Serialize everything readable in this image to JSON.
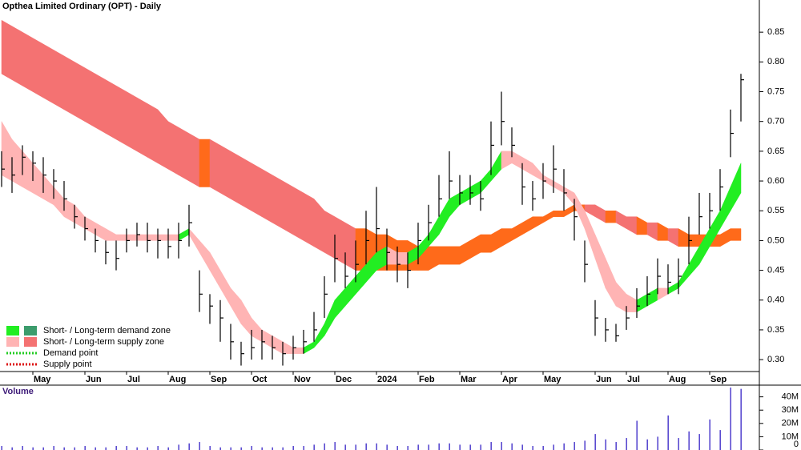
{
  "chart_data": [
    {
      "type": "ohlc",
      "title": "Opthea Limited Ordinary (OPT) - Daily",
      "categories": [
        null,
        null,
        null,
        "May",
        null,
        null,
        null,
        null,
        "Jun",
        null,
        null,
        null,
        "Jul",
        null,
        null,
        null,
        "Aug",
        null,
        null,
        null,
        "Sep",
        null,
        null,
        null,
        "Oct",
        null,
        null,
        null,
        "Nov",
        null,
        null,
        null,
        "Dec",
        null,
        null,
        null,
        "2024",
        null,
        null,
        null,
        "Feb",
        null,
        null,
        null,
        "Mar",
        null,
        null,
        null,
        "Apr",
        null,
        null,
        null,
        "May",
        null,
        null,
        null,
        null,
        "Jun",
        null,
        null,
        "Jul",
        null,
        null,
        null,
        "Aug",
        null,
        null,
        null,
        "Sep",
        null,
        null,
        null
      ],
      "high": [
        0.65,
        0.64,
        0.66,
        0.65,
        0.64,
        0.62,
        0.6,
        0.56,
        0.54,
        0.52,
        0.5,
        0.5,
        0.52,
        0.53,
        0.53,
        0.52,
        0.52,
        0.53,
        0.56,
        0.45,
        0.41,
        0.4,
        0.36,
        0.33,
        0.35,
        0.35,
        0.34,
        0.33,
        0.34,
        0.35,
        0.38,
        0.44,
        0.51,
        0.48,
        0.5,
        0.55,
        0.59,
        0.52,
        0.49,
        0.48,
        0.53,
        0.56,
        0.61,
        0.65,
        0.61,
        0.61,
        0.6,
        0.7,
        0.75,
        0.69,
        0.63,
        0.6,
        0.63,
        0.66,
        0.62,
        0.57,
        0.5,
        0.4,
        0.37,
        0.36,
        0.39,
        0.42,
        0.44,
        0.47,
        0.46,
        0.47,
        0.54,
        0.58,
        0.58,
        0.62,
        0.72,
        0.78
      ],
      "low": [
        0.59,
        0.58,
        0.61,
        0.6,
        0.58,
        0.57,
        0.55,
        0.52,
        0.5,
        0.48,
        0.46,
        0.45,
        0.48,
        0.49,
        0.48,
        0.47,
        0.47,
        0.47,
        0.49,
        0.38,
        0.36,
        0.33,
        0.3,
        0.29,
        0.3,
        0.3,
        0.3,
        0.29,
        0.3,
        0.31,
        0.33,
        0.37,
        0.43,
        0.42,
        0.43,
        0.46,
        0.48,
        0.45,
        0.43,
        0.42,
        0.46,
        0.5,
        0.54,
        0.57,
        0.56,
        0.56,
        0.55,
        0.61,
        0.66,
        0.64,
        0.56,
        0.55,
        0.57,
        0.58,
        0.55,
        0.5,
        0.43,
        0.34,
        0.33,
        0.33,
        0.35,
        0.37,
        0.39,
        0.41,
        0.41,
        0.41,
        0.46,
        0.51,
        0.52,
        0.55,
        0.64,
        0.7
      ],
      "close": [
        0.62,
        0.61,
        0.64,
        0.63,
        0.61,
        0.6,
        0.57,
        0.54,
        0.52,
        0.5,
        0.48,
        0.47,
        0.5,
        0.51,
        0.5,
        0.5,
        0.49,
        0.5,
        0.53,
        0.41,
        0.39,
        0.37,
        0.33,
        0.31,
        0.32,
        0.33,
        0.32,
        0.31,
        0.32,
        0.33,
        0.35,
        0.41,
        0.47,
        0.44,
        0.46,
        0.5,
        0.52,
        0.48,
        0.46,
        0.45,
        0.5,
        0.53,
        0.57,
        0.6,
        0.58,
        0.58,
        0.57,
        0.66,
        0.7,
        0.66,
        0.59,
        0.57,
        0.6,
        0.62,
        0.58,
        0.54,
        0.46,
        0.37,
        0.35,
        0.34,
        0.37,
        0.39,
        0.41,
        0.44,
        0.43,
        0.44,
        0.5,
        0.54,
        0.55,
        0.59,
        0.68,
        0.77
      ],
      "bands": [
        {
          "lower": [
            0.78,
            0.77,
            0.76,
            0.75,
            0.74,
            0.73,
            0.72,
            0.71,
            0.7,
            0.69,
            0.68,
            0.67,
            0.66,
            0.65,
            0.64,
            0.63,
            0.62,
            0.61,
            0.6,
            0.59,
            0.59,
            0.58,
            0.57,
            0.56,
            0.55,
            0.54,
            0.53,
            0.52,
            0.51,
            0.5,
            0.49,
            0.48,
            0.47,
            0.46,
            0.45,
            0.45,
            0.45,
            0.45,
            0.45,
            0.45,
            0.45,
            0.45,
            0.46,
            0.46,
            0.46,
            0.47,
            0.48,
            0.48,
            0.49,
            0.5,
            0.51,
            0.52,
            0.53,
            0.54,
            0.54,
            0.55,
            0.55,
            0.54,
            0.53,
            0.53,
            0.52,
            0.51,
            0.51,
            0.5,
            0.5,
            0.49,
            0.49,
            0.49,
            0.49,
            0.49,
            0.5,
            0.5
          ],
          "upper": [
            0.87,
            0.86,
            0.85,
            0.84,
            0.83,
            0.82,
            0.81,
            0.8,
            0.79,
            0.78,
            0.77,
            0.76,
            0.75,
            0.74,
            0.73,
            0.72,
            0.7,
            0.69,
            0.68,
            0.67,
            0.67,
            0.66,
            0.65,
            0.64,
            0.63,
            0.62,
            0.61,
            0.6,
            0.59,
            0.58,
            0.57,
            0.55,
            0.54,
            0.53,
            0.52,
            0.52,
            0.51,
            0.51,
            0.5,
            0.5,
            0.49,
            0.49,
            0.49,
            0.49,
            0.49,
            0.5,
            0.51,
            0.51,
            0.52,
            0.52,
            0.53,
            0.54,
            0.54,
            0.55,
            0.55,
            0.56,
            0.56,
            0.56,
            0.55,
            0.55,
            0.54,
            0.54,
            0.53,
            0.53,
            0.52,
            0.52,
            0.51,
            0.51,
            0.51,
            0.51,
            0.52,
            0.52
          ],
          "color": "#f47272",
          "demand_color": "#ff6a1a"
        },
        {
          "lower": [
            0.61,
            0.6,
            0.59,
            0.58,
            0.57,
            0.56,
            0.54,
            0.53,
            0.52,
            0.51,
            0.5,
            0.5,
            0.5,
            0.5,
            0.5,
            0.5,
            0.5,
            0.5,
            0.51,
            0.48,
            0.45,
            0.42,
            0.39,
            0.36,
            0.34,
            0.33,
            0.32,
            0.31,
            0.31,
            0.31,
            0.32,
            0.34,
            0.37,
            0.39,
            0.41,
            0.43,
            0.45,
            0.46,
            0.46,
            0.46,
            0.47,
            0.49,
            0.51,
            0.54,
            0.56,
            0.57,
            0.58,
            0.6,
            0.62,
            0.63,
            0.62,
            0.61,
            0.6,
            0.59,
            0.58,
            0.56,
            0.52,
            0.47,
            0.42,
            0.39,
            0.38,
            0.38,
            0.39,
            0.4,
            0.41,
            0.42,
            0.44,
            0.46,
            0.49,
            0.52,
            0.55,
            0.58
          ],
          "upper": [
            0.7,
            0.67,
            0.65,
            0.63,
            0.61,
            0.59,
            0.57,
            0.56,
            0.54,
            0.53,
            0.52,
            0.51,
            0.51,
            0.51,
            0.51,
            0.51,
            0.51,
            0.51,
            0.52,
            0.5,
            0.48,
            0.45,
            0.42,
            0.4,
            0.37,
            0.35,
            0.34,
            0.33,
            0.32,
            0.32,
            0.33,
            0.36,
            0.4,
            0.42,
            0.44,
            0.46,
            0.48,
            0.49,
            0.48,
            0.48,
            0.49,
            0.51,
            0.54,
            0.57,
            0.58,
            0.59,
            0.6,
            0.62,
            0.65,
            0.65,
            0.64,
            0.63,
            0.61,
            0.6,
            0.59,
            0.58,
            0.55,
            0.51,
            0.47,
            0.43,
            0.41,
            0.4,
            0.41,
            0.42,
            0.42,
            0.43,
            0.46,
            0.49,
            0.52,
            0.55,
            0.59,
            0.63
          ],
          "color": "#ffb4b4",
          "demand_color": "#22ee22"
        }
      ],
      "ylim": [
        0.28,
        0.904
      ],
      "yticks": [
        {
          "value": 0.3,
          "label": "0.30"
        },
        0.35,
        {
          "value": 0.4,
          "label": "0.40"
        },
        0.45,
        {
          "value": 0.5,
          "label": "0.50"
        },
        0.55,
        {
          "value": 0.6,
          "label": "0.60"
        },
        0.65,
        {
          "value": 0.7,
          "label": "0.70"
        },
        0.75,
        {
          "value": 0.8,
          "label": "0.80"
        },
        0.85
      ],
      "legend": [
        {
          "label": "Short- / Long-term demand zone",
          "colors": [
            "#22ee22",
            "#3c9c6c"
          ]
        },
        {
          "label": "Short- / Long-term supply zone",
          "colors": [
            "#ffb4b4",
            "#f47272"
          ]
        },
        {
          "label": "Demand point",
          "color": "#22cc22"
        },
        {
          "label": "Supply point",
          "color": "#dd1111"
        }
      ]
    },
    {
      "type": "bar",
      "title": "Volume",
      "values": [
        3000000,
        2000000,
        3000000,
        2000000,
        2000000,
        3000000,
        2000000,
        2000000,
        3000000,
        2000000,
        2000000,
        3000000,
        3000000,
        2000000,
        2000000,
        3000000,
        2000000,
        4000000,
        5000000,
        6000000,
        3000000,
        2000000,
        2000000,
        2000000,
        3000000,
        2000000,
        2000000,
        2000000,
        3000000,
        3000000,
        4000000,
        5000000,
        6000000,
        4000000,
        4000000,
        5000000,
        5000000,
        4000000,
        3000000,
        3000000,
        4000000,
        4000000,
        5000000,
        5000000,
        4000000,
        4000000,
        4000000,
        6000000,
        6000000,
        5000000,
        4000000,
        3000000,
        3000000,
        4000000,
        5000000,
        6000000,
        7000000,
        12000000,
        8000000,
        6000000,
        9000000,
        22000000,
        8000000,
        10000000,
        26000000,
        9000000,
        14000000,
        12000000,
        23000000,
        15000000,
        47000000,
        46000000
      ],
      "color": "#5a4bd0",
      "ylim": [
        0,
        48800000
      ],
      "yticks": [
        0,
        {
          "value": 10000000,
          "label": "10M"
        },
        {
          "value": 20000000,
          "label": "20M"
        },
        {
          "value": 30000000,
          "label": "30M"
        },
        {
          "value": 40000000,
          "label": "40M"
        }
      ]
    }
  ]
}
